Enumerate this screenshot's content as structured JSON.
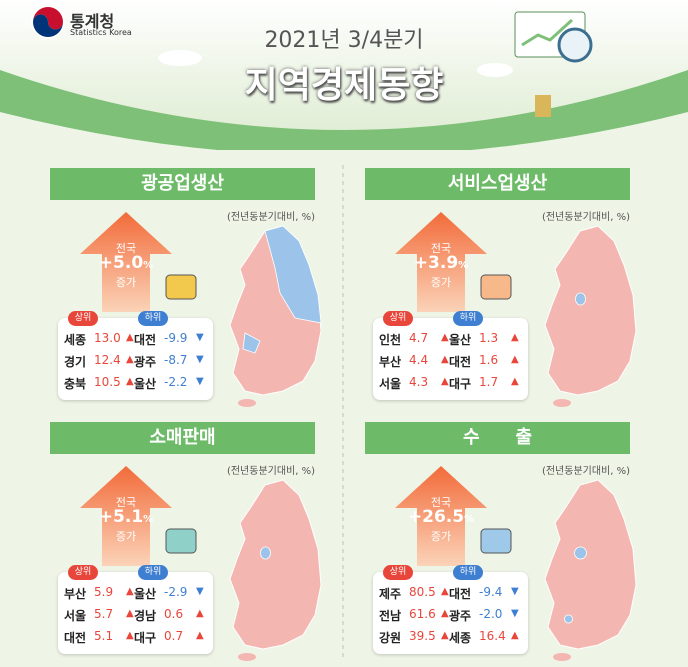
{
  "header": {
    "logo_name": "통계청",
    "logo_sub": "Statistics Korea",
    "period": "2021년 3/4분기",
    "title": "지역경제동향"
  },
  "panels": [
    {
      "title": "광공업생산",
      "unit": "(전년동분기대비, %)",
      "national_label": "전국",
      "national_value": "+5.0",
      "national_unit": "%",
      "national_change": "증가",
      "top_label": "상위",
      "bottom_label": "하위",
      "top": [
        {
          "region": "세종",
          "value": "13.0",
          "arrow": "▲"
        },
        {
          "region": "경기",
          "value": "12.4",
          "arrow": "▲"
        },
        {
          "region": "충북",
          "value": "10.5",
          "arrow": "▲"
        }
      ],
      "bottom": [
        {
          "region": "대전",
          "value": "-9.9",
          "arrow": "▼"
        },
        {
          "region": "광주",
          "value": "-8.7",
          "arrow": "▼"
        },
        {
          "region": "울산",
          "value": "-2.2",
          "arrow": "▼"
        }
      ]
    },
    {
      "title": "서비스업생산",
      "unit": "(전년동분기대비, %)",
      "national_label": "전국",
      "national_value": "+3.9",
      "national_unit": "%",
      "national_change": "증가",
      "top_label": "상위",
      "bottom_label": "하위",
      "top": [
        {
          "region": "인천",
          "value": "4.7",
          "arrow": "▲"
        },
        {
          "region": "부산",
          "value": "4.4",
          "arrow": "▲"
        },
        {
          "region": "서울",
          "value": "4.3",
          "arrow": "▲"
        }
      ],
      "bottom": [
        {
          "region": "울산",
          "value": "1.3",
          "arrow": "▲"
        },
        {
          "region": "대전",
          "value": "1.6",
          "arrow": "▲"
        },
        {
          "region": "대구",
          "value": "1.7",
          "arrow": "▲"
        }
      ]
    },
    {
      "title": "소매판매",
      "unit": "(전년동분기대비, %)",
      "national_label": "전국",
      "national_value": "+5.1",
      "national_unit": "%",
      "national_change": "증가",
      "top_label": "상위",
      "bottom_label": "하위",
      "top": [
        {
          "region": "부산",
          "value": "5.9",
          "arrow": "▲"
        },
        {
          "region": "서울",
          "value": "5.7",
          "arrow": "▲"
        },
        {
          "region": "대전",
          "value": "5.1",
          "arrow": "▲"
        }
      ],
      "bottom": [
        {
          "region": "울산",
          "value": "-2.9",
          "arrow": "▼"
        },
        {
          "region": "경남",
          "value": "0.6",
          "arrow": "▲"
        },
        {
          "region": "대구",
          "value": "0.7",
          "arrow": "▲"
        }
      ]
    },
    {
      "title": "수　　출",
      "unit": "(전년동분기대비, %)",
      "national_label": "전국",
      "national_value": "+26.5",
      "national_unit": "%",
      "national_change": "증가",
      "top_label": "상위",
      "bottom_label": "하위",
      "top": [
        {
          "region": "제주",
          "value": "80.5",
          "arrow": "▲"
        },
        {
          "region": "전남",
          "value": "61.6",
          "arrow": "▲"
        },
        {
          "region": "강원",
          "value": "39.5",
          "arrow": "▲"
        }
      ],
      "bottom": [
        {
          "region": "대전",
          "value": "-9.4",
          "arrow": "▼"
        },
        {
          "region": "광주",
          "value": "-2.0",
          "arrow": "▼"
        },
        {
          "region": "세종",
          "value": "16.4",
          "arrow": "▲"
        }
      ]
    }
  ]
}
